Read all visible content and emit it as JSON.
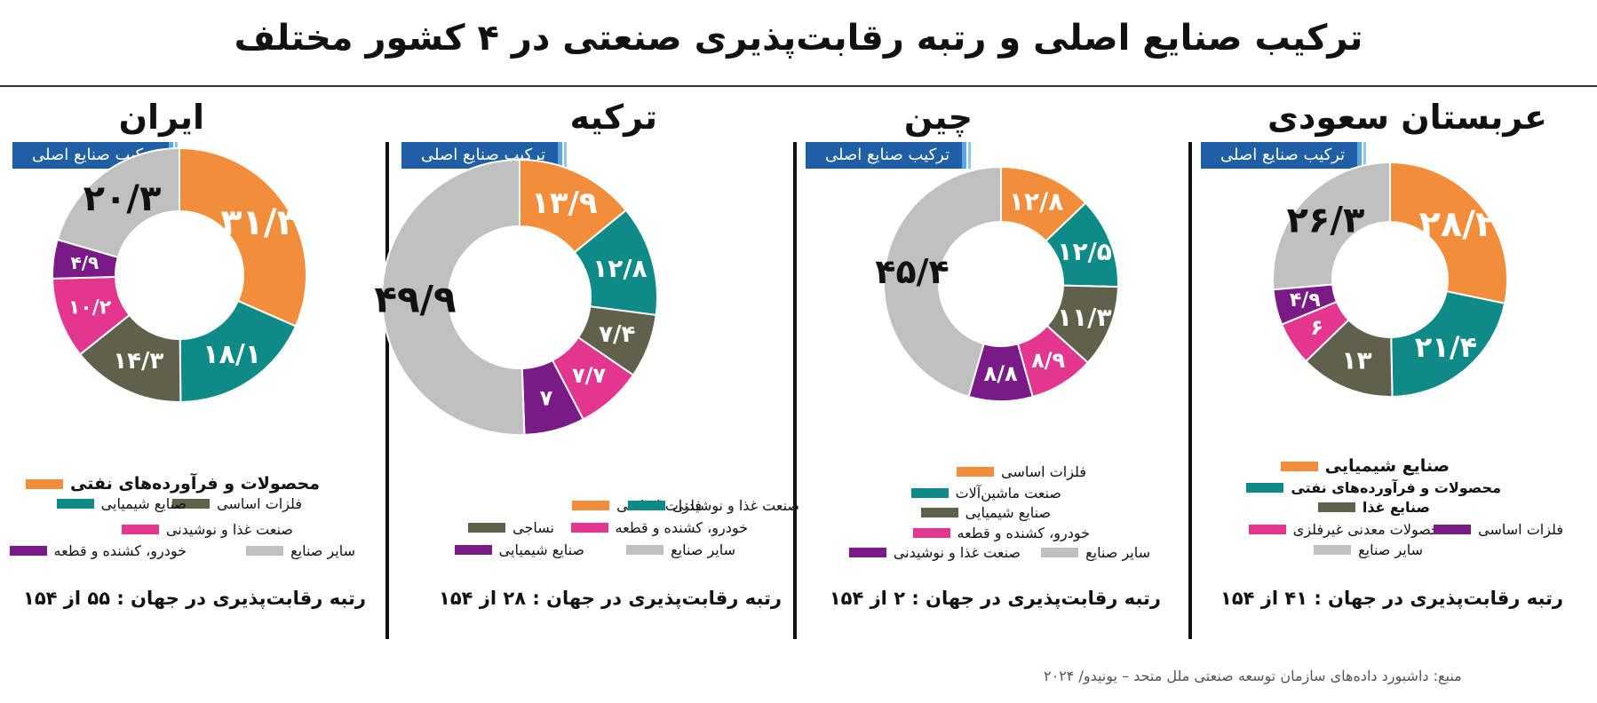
{
  "title": "ترکیب صنایع اصلی و رتبه رقابت‌پذیری صنعتی در ۴ کشور مختلف",
  "source": "منبع: داشبورد داده‌های سازمان توسعه صنعتی ملل متحد – یونیدو/ ۲۰۲۴",
  "colors": {
    "orange": "#f28e3b",
    "teal": "#0e8a87",
    "olive": "#5f614a",
    "pink": "#e3368f",
    "purple": "#7a1a86",
    "gray": "#c0c0c0",
    "badge": "#1f5fa6"
  },
  "panels": [
    {
      "country": "ایران",
      "subtitle": "ترکیب صنایع اصلی",
      "rank_text": "رتبه رقابت‌پذیری در جهان :  ۵۵ از ۱۵۴",
      "legend": [
        {
          "label": "محصولات و فرآورده‌های نفتی",
          "color": "#f28e3b"
        },
        {
          "label": "صنایع شیمیایی",
          "color": "#0e8a87"
        },
        {
          "label": "فلزات اساسی",
          "color": "#5f614a"
        },
        {
          "label": "صنعت غذا و نوشیدنی",
          "color": "#e3368f"
        },
        {
          "label": "خودرو، کشنده و قطعه",
          "color": "#7a1a86"
        },
        {
          "label": "سایر صنایع",
          "color": "#c0c0c0"
        }
      ]
    },
    {
      "country": "ترکیه",
      "subtitle": "ترکیب صنایع اصلی",
      "rank_text": "رتبه رقابت‌پذیری در جهان :  ۲۸ از ۱۵۴",
      "legend": [
        {
          "label": "فلزات اساسی",
          "color": "#f28e3b"
        },
        {
          "label": "صنعت غذا و نوشیدنی",
          "color": "#0e8a87"
        },
        {
          "label": "نساجی",
          "color": "#5f614a"
        },
        {
          "label": "خودرو، کشنده و قطعه",
          "color": "#e3368f"
        },
        {
          "label": "صنایع شیمیایی",
          "color": "#7a1a86"
        },
        {
          "label": "سایر صنایع",
          "color": "#c0c0c0"
        }
      ]
    },
    {
      "country": "چین",
      "subtitle": "ترکیب صنایع اصلی",
      "rank_text": "رتبه رقابت‌پذیری در جهان :  ۲ از ۱۵۴",
      "legend": [
        {
          "label": "فلزات اساسی",
          "color": "#f28e3b"
        },
        {
          "label": "صنعت ماشین‌آلات",
          "color": "#0e8a87"
        },
        {
          "label": "صنایع شیمیایی",
          "color": "#5f614a"
        },
        {
          "label": "خودرو، کشنده و قطعه",
          "color": "#e3368f"
        },
        {
          "label": "صنعت غذا و نوشیدنی",
          "color": "#7a1a86"
        },
        {
          "label": "سایر صنایع",
          "color": "#c0c0c0"
        }
      ]
    },
    {
      "country": "عربستان سعودی",
      "subtitle": "ترکیب صنایع اصلی",
      "rank_text": "رتبه رقابت‌پذیری در جهان :  ۴۱ از ۱۵۴",
      "legend": [
        {
          "label": "صنایع شیمیایی",
          "color": "#f28e3b"
        },
        {
          "label": "محصولات و فرآورده‌های نفتی",
          "color": "#0e8a87"
        },
        {
          "label": "صنایع غذا",
          "color": "#5f614a"
        },
        {
          "label": "محصولات معدنی غیرفلزی",
          "color": "#e3368f"
        },
        {
          "label": "فلزات اساسی",
          "color": "#7a1a86"
        },
        {
          "label": "سایر صنایع",
          "color": "#c0c0c0"
        }
      ]
    }
  ],
  "chart_data": [
    {
      "type": "pie",
      "donut": true,
      "title": "ایران",
      "categories": [
        "محصولات و فرآورده‌های نفتی",
        "صنایع شیمیایی",
        "فلزات اساسی",
        "صنعت غذا و نوشیدنی",
        "خودرو، کشنده و قطعه",
        "سایر صنایع"
      ],
      "values": [
        31.3,
        18.1,
        14.3,
        10.2,
        4.9,
        20.3
      ],
      "value_labels": [
        "۳۱/۳",
        "۱۸/۱",
        "۱۴/۳",
        "۱۰/۲",
        "۴/۹",
        "۲۰/۳"
      ],
      "colors": [
        "#f28e3b",
        "#0e8a87",
        "#5f614a",
        "#e3368f",
        "#7a1a86",
        "#c0c0c0"
      ]
    },
    {
      "type": "pie",
      "donut": true,
      "title": "ترکیه",
      "categories": [
        "فلزات اساسی",
        "صنعت غذا و نوشیدنی",
        "نساجی",
        "خودرو، کشنده و قطعه",
        "صنایع شیمیایی",
        "سایر صنایع"
      ],
      "values": [
        13.9,
        12.8,
        7.4,
        7.7,
        7,
        49.9
      ],
      "value_labels": [
        "۱۳/۹",
        "۱۲/۸",
        "۷/۴",
        "۷/۷",
        "۷",
        "۴۹/۹"
      ],
      "colors": [
        "#f28e3b",
        "#0e8a87",
        "#5f614a",
        "#e3368f",
        "#7a1a86",
        "#c0c0c0"
      ]
    },
    {
      "type": "pie",
      "donut": true,
      "title": "چین",
      "categories": [
        "فلزات اساسی",
        "صنعت ماشین‌آلات",
        "صنایع شیمیایی",
        "خودرو، کشنده و قطعه",
        "صنعت غذا و نوشیدنی",
        "سایر صنایع"
      ],
      "values": [
        12.8,
        12.5,
        11.3,
        8.9,
        8.8,
        45.4
      ],
      "value_labels": [
        "۱۲/۸",
        "۱۲/۵",
        "۱۱/۳",
        "۸/۹",
        "۸/۸",
        "۴۵/۴"
      ],
      "colors": [
        "#f28e3b",
        "#0e8a87",
        "#5f614a",
        "#e3368f",
        "#7a1a86",
        "#c0c0c0"
      ]
    },
    {
      "type": "pie",
      "donut": true,
      "title": "عربستان سعودی",
      "categories": [
        "صنایع شیمیایی",
        "محصولات و فرآورده‌های نفتی",
        "صنایع غذا",
        "محصولات معدنی غیرفلزی",
        "فلزات اساسی",
        "سایر صنایع"
      ],
      "values": [
        28.2,
        21.4,
        13,
        6,
        4.9,
        26.3
      ],
      "value_labels": [
        "۲۸/۲",
        "۲۱/۴",
        "۱۳",
        "۶",
        "۴/۹",
        "۲۶/۳"
      ],
      "colors": [
        "#f28e3b",
        "#0e8a87",
        "#5f614a",
        "#e3368f",
        "#7a1a86",
        "#c0c0c0"
      ]
    }
  ]
}
